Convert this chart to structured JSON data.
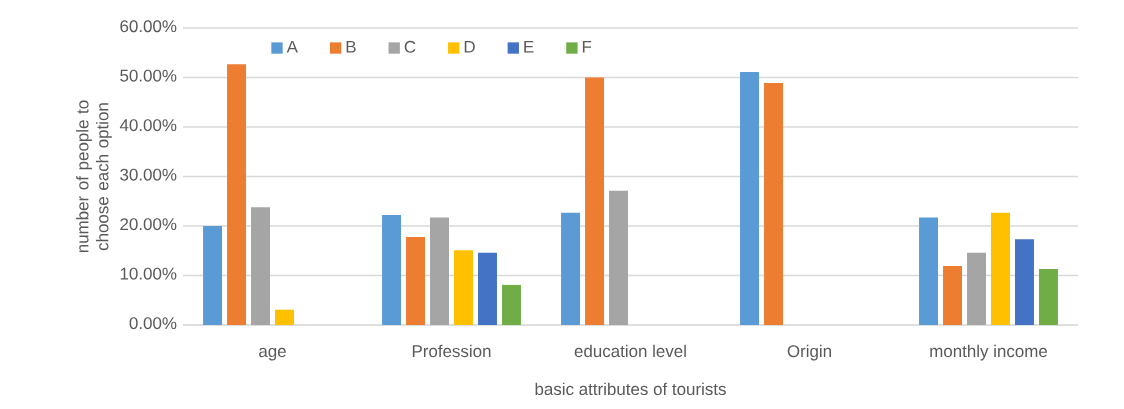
{
  "chart_data": {
    "type": "bar",
    "xlabel": "basic attributes of tourists",
    "ylabel": "number of people to choose each option",
    "categories": [
      "age",
      "Profession",
      "education level",
      "Origin",
      "monthly income"
    ],
    "series": [
      {
        "name": "A",
        "color": "#5b9bd5",
        "values": [
          20.0,
          22.2,
          22.7,
          51.1,
          21.7
        ]
      },
      {
        "name": "B",
        "color": "#ed7d31",
        "values": [
          52.7,
          17.8,
          50.0,
          48.9,
          11.9
        ]
      },
      {
        "name": "C",
        "color": "#a5a5a5",
        "values": [
          23.8,
          21.7,
          27.1,
          null,
          14.6
        ]
      },
      {
        "name": "D",
        "color": "#ffc000",
        "values": [
          3.1,
          15.1,
          null,
          null,
          22.7
        ]
      },
      {
        "name": "E",
        "color": "#4472c4",
        "values": [
          null,
          14.6,
          null,
          null,
          17.3
        ]
      },
      {
        "name": "F",
        "color": "#70ad47",
        "values": [
          null,
          8.1,
          null,
          null,
          11.3
        ]
      }
    ],
    "ylim": [
      0,
      60
    ],
    "yticks": [
      {
        "value": 0,
        "label": "0.00%"
      },
      {
        "value": 10,
        "label": "10.00%"
      },
      {
        "value": 20,
        "label": "20.00%"
      },
      {
        "value": 30,
        "label": "30.00%"
      },
      {
        "value": 40,
        "label": "40.00%"
      },
      {
        "value": 50,
        "label": "50.00%"
      },
      {
        "value": 60,
        "label": "60.00%"
      }
    ],
    "grid": "y",
    "legend": "top"
  }
}
